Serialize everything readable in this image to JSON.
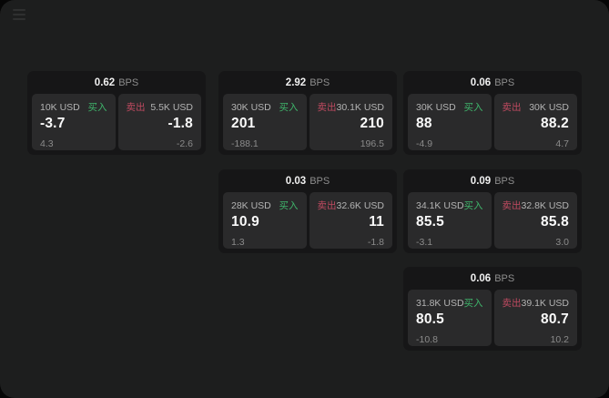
{
  "window": {
    "menu_icon": "hamburger-menu"
  },
  "labels": {
    "bps_unit": "BPS",
    "buy": "买入",
    "sell": "卖出"
  },
  "colors": {
    "app_background": "#1d1e1e",
    "card_background": "#161617",
    "panel_background": "#2a2a2b",
    "buy_green": "#3fb56b",
    "sell_red": "#bf4a60",
    "text_primary": "#fafafa",
    "text_muted": "#8b8b8b"
  },
  "cards": [
    {
      "bps": "0.62",
      "buy": {
        "amount": "10K USD",
        "value": "-3.7",
        "change": "4.3"
      },
      "sell": {
        "amount": "5.5K USD",
        "value": "-1.8",
        "change": "-2.6"
      }
    },
    {
      "bps": "2.92",
      "buy": {
        "amount": "30K USD",
        "value": "201",
        "change": "-188.1"
      },
      "sell": {
        "amount": "30.1K USD",
        "value": "210",
        "change": "196.5"
      }
    },
    {
      "bps": "0.06",
      "buy": {
        "amount": "30K USD",
        "value": "88",
        "change": "-4.9"
      },
      "sell": {
        "amount": "30K USD",
        "value": "88.2",
        "change": "4.7"
      }
    },
    {
      "bps": "0.03",
      "buy": {
        "amount": "28K USD",
        "value": "10.9",
        "change": "1.3"
      },
      "sell": {
        "amount": "32.6K USD",
        "value": "11",
        "change": "-1.8"
      }
    },
    {
      "bps": "0.09",
      "buy": {
        "amount": "34.1K USD",
        "value": "85.5",
        "change": "-3.1"
      },
      "sell": {
        "amount": "32.8K USD",
        "value": "85.8",
        "change": "3.0"
      }
    },
    {
      "bps": "0.06",
      "buy": {
        "amount": "31.8K USD",
        "value": "80.5",
        "change": "-10.8"
      },
      "sell": {
        "amount": "39.1K USD",
        "value": "80.7",
        "change": "10.2"
      }
    }
  ]
}
